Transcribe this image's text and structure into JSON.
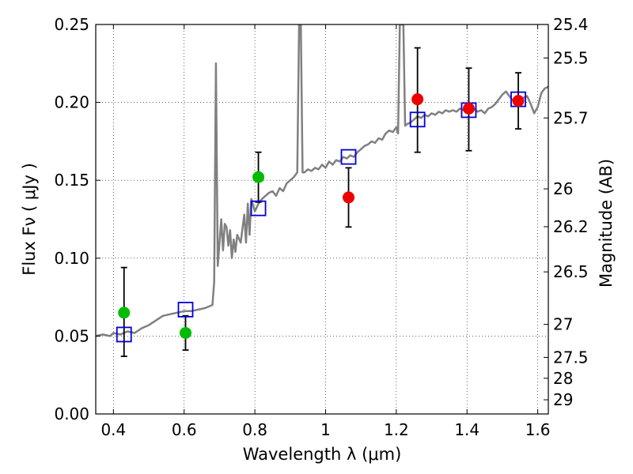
{
  "chart_data": {
    "type": "scatter",
    "title": "",
    "xlabel": "Wavelength  λ (μm)",
    "ylabel": "Flux  Fν  ( μJy )",
    "y2label": "Magnitude (AB)",
    "xlim": [
      0.35,
      1.63
    ],
    "ylim": [
      0.0,
      0.25
    ],
    "grid": true,
    "xticks": [
      0.4,
      0.6,
      0.8,
      1.0,
      1.2,
      1.4,
      1.6
    ],
    "xtick_labels": [
      "0.4",
      "0.6",
      "0.8",
      "1",
      "1.2",
      "1.4",
      "1.6"
    ],
    "yticks": [
      0.0,
      0.05,
      0.1,
      0.15,
      0.2,
      0.25
    ],
    "ytick_labels": [
      "0.00",
      "0.05",
      "0.10",
      "0.15",
      "0.20",
      "0.25"
    ],
    "y2ticks": [
      {
        "label": "25.4",
        "flux": 0.25
      },
      {
        "label": "25.5",
        "flux": 0.2285
      },
      {
        "label": "25.7",
        "flux": 0.19
      },
      {
        "label": "26",
        "flux": 0.1445
      },
      {
        "label": "26.2",
        "flux": 0.1202
      },
      {
        "label": "26.5",
        "flux": 0.0912
      },
      {
        "label": "27",
        "flux": 0.0575
      },
      {
        "label": "27.5",
        "flux": 0.0363
      },
      {
        "label": "28",
        "flux": 0.0229
      },
      {
        "label": "29",
        "flux": 0.0091
      }
    ],
    "series": [
      {
        "kind": "line",
        "color": "#808080",
        "points": [
          [
            0.35,
            0.05
          ],
          [
            0.37,
            0.051
          ],
          [
            0.39,
            0.05
          ],
          [
            0.4,
            0.052
          ],
          [
            0.42,
            0.051
          ],
          [
            0.44,
            0.053
          ],
          [
            0.46,
            0.052
          ],
          [
            0.48,
            0.055
          ],
          [
            0.5,
            0.057
          ],
          [
            0.52,
            0.06
          ],
          [
            0.54,
            0.063
          ],
          [
            0.56,
            0.064
          ],
          [
            0.58,
            0.065
          ],
          [
            0.6,
            0.066
          ],
          [
            0.62,
            0.066
          ],
          [
            0.64,
            0.067
          ],
          [
            0.66,
            0.068
          ],
          [
            0.68,
            0.07
          ],
          [
            0.685,
            0.085
          ],
          [
            0.69,
            0.225
          ],
          [
            0.695,
            0.095
          ],
          [
            0.7,
            0.11
          ],
          [
            0.705,
            0.125
          ],
          [
            0.71,
            0.105
          ],
          [
            0.715,
            0.122
          ],
          [
            0.72,
            0.12
          ],
          [
            0.725,
            0.108
          ],
          [
            0.73,
            0.118
          ],
          [
            0.735,
            0.1
          ],
          [
            0.74,
            0.112
          ],
          [
            0.745,
            0.104
          ],
          [
            0.75,
            0.115
          ],
          [
            0.76,
            0.11
          ],
          [
            0.77,
            0.128
          ],
          [
            0.775,
            0.11
          ],
          [
            0.78,
            0.135
          ],
          [
            0.785,
            0.115
          ],
          [
            0.79,
            0.138
          ],
          [
            0.8,
            0.13
          ],
          [
            0.81,
            0.135
          ],
          [
            0.82,
            0.138
          ],
          [
            0.83,
            0.14
          ],
          [
            0.84,
            0.142
          ],
          [
            0.85,
            0.143
          ],
          [
            0.86,
            0.14
          ],
          [
            0.87,
            0.145
          ],
          [
            0.88,
            0.143
          ],
          [
            0.89,
            0.148
          ],
          [
            0.9,
            0.15
          ],
          [
            0.91,
            0.152
          ],
          [
            0.92,
            0.155
          ],
          [
            0.925,
            0.25
          ],
          [
            0.93,
            0.25
          ],
          [
            0.935,
            0.155
          ],
          [
            0.94,
            0.155
          ],
          [
            0.95,
            0.157
          ],
          [
            0.96,
            0.156
          ],
          [
            0.97,
            0.158
          ],
          [
            0.98,
            0.157
          ],
          [
            0.99,
            0.16
          ],
          [
            1.0,
            0.158
          ],
          [
            1.01,
            0.162
          ],
          [
            1.02,
            0.16
          ],
          [
            1.03,
            0.163
          ],
          [
            1.04,
            0.162
          ],
          [
            1.05,
            0.165
          ],
          [
            1.06,
            0.164
          ],
          [
            1.07,
            0.166
          ],
          [
            1.08,
            0.165
          ],
          [
            1.09,
            0.168
          ],
          [
            1.1,
            0.17
          ],
          [
            1.11,
            0.172
          ],
          [
            1.12,
            0.173
          ],
          [
            1.13,
            0.175
          ],
          [
            1.14,
            0.174
          ],
          [
            1.15,
            0.177
          ],
          [
            1.16,
            0.176
          ],
          [
            1.17,
            0.18
          ],
          [
            1.18,
            0.182
          ],
          [
            1.19,
            0.181
          ],
          [
            1.2,
            0.184
          ],
          [
            1.205,
            0.18
          ],
          [
            1.21,
            0.25
          ],
          [
            1.22,
            0.25
          ],
          [
            1.225,
            0.185
          ],
          [
            1.23,
            0.186
          ],
          [
            1.24,
            0.187
          ],
          [
            1.25,
            0.189
          ],
          [
            1.26,
            0.191
          ],
          [
            1.27,
            0.19
          ],
          [
            1.28,
            0.192
          ],
          [
            1.29,
            0.191
          ],
          [
            1.3,
            0.193
          ],
          [
            1.31,
            0.192
          ],
          [
            1.32,
            0.194
          ],
          [
            1.33,
            0.193
          ],
          [
            1.34,
            0.195
          ],
          [
            1.35,
            0.194
          ],
          [
            1.36,
            0.195
          ],
          [
            1.37,
            0.194
          ],
          [
            1.38,
            0.196
          ],
          [
            1.39,
            0.195
          ],
          [
            1.4,
            0.197
          ],
          [
            1.41,
            0.195
          ],
          [
            1.42,
            0.196
          ],
          [
            1.43,
            0.194
          ],
          [
            1.44,
            0.195
          ],
          [
            1.45,
            0.193
          ],
          [
            1.46,
            0.196
          ],
          [
            1.47,
            0.197
          ],
          [
            1.48,
            0.199
          ],
          [
            1.49,
            0.202
          ],
          [
            1.5,
            0.205
          ],
          [
            1.51,
            0.207
          ],
          [
            1.52,
            0.204
          ],
          [
            1.53,
            0.201
          ],
          [
            1.54,
            0.199
          ],
          [
            1.55,
            0.202
          ],
          [
            1.56,
            0.203
          ],
          [
            1.57,
            0.204
          ],
          [
            1.58,
            0.199
          ],
          [
            1.59,
            0.193
          ],
          [
            1.6,
            0.197
          ],
          [
            1.61,
            0.206
          ],
          [
            1.62,
            0.209
          ],
          [
            1.63,
            0.21
          ]
        ]
      },
      {
        "kind": "open-square",
        "color": "#0000dd",
        "points": [
          [
            0.43,
            0.051
          ],
          [
            0.604,
            0.067
          ],
          [
            0.81,
            0.132
          ],
          [
            1.065,
            0.165
          ],
          [
            1.26,
            0.189
          ],
          [
            1.405,
            0.195
          ],
          [
            1.545,
            0.202
          ]
        ]
      },
      {
        "kind": "filled-circle",
        "color": "#00bb00",
        "points": [
          [
            0.43,
            0.065
          ],
          [
            0.604,
            0.052
          ],
          [
            0.81,
            0.152
          ]
        ],
        "errors": [
          [
            0.037,
            0.094
          ],
          [
            0.041,
            0.063
          ],
          [
            0.136,
            0.168
          ]
        ]
      },
      {
        "kind": "filled-circle",
        "color": "#ee0000",
        "points": [
          [
            1.065,
            0.139
          ],
          [
            1.26,
            0.202
          ],
          [
            1.405,
            0.196
          ],
          [
            1.545,
            0.201
          ]
        ],
        "errors": [
          [
            0.12,
            0.158
          ],
          [
            0.168,
            0.235
          ],
          [
            0.169,
            0.222
          ],
          [
            0.183,
            0.219
          ]
        ]
      }
    ]
  }
}
